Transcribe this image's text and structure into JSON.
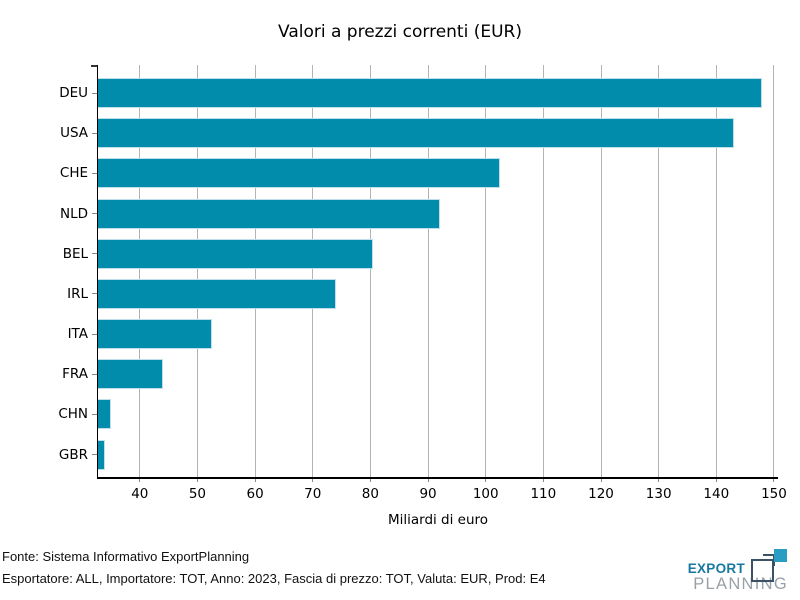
{
  "chart_data": {
    "type": "bar",
    "orientation": "horizontal",
    "title": "Valori a prezzi correnti (EUR)",
    "xlabel": "Miliardi di euro",
    "categories": [
      "DEU",
      "USA",
      "CHE",
      "NLD",
      "BEL",
      "IRL",
      "ITA",
      "FRA",
      "CHN",
      "GBR"
    ],
    "values": [
      148,
      143,
      102.5,
      92,
      80.5,
      74,
      52.5,
      44,
      35,
      34
    ],
    "xlim": [
      32.75,
      150.7
    ],
    "xticks": [
      40,
      50,
      60,
      70,
      80,
      90,
      100,
      110,
      120,
      130,
      140,
      150
    ],
    "grid": "vertical-only",
    "legend": "none",
    "bar_color": "#008caa",
    "bar_edge_color": "#bfdfec",
    "grid_color": "#b4b4b4",
    "axis_color": "#000000"
  },
  "footer": {
    "line1": "Fonte: Sistema Informativo ExportPlanning",
    "line2": "Esportatore: ALL, Importatore: TOT, Anno: 2023, Fascia di prezzo: TOT, Valuta: EUR, Prod: E4"
  },
  "logo": {
    "word1": "EXPORT",
    "word2": "PLANNING",
    "word1_color": "#1779a0",
    "word2_color": "#99a1a8",
    "icon_dark_color": "#3b5266",
    "icon_teal_color": "#2a9dc4"
  }
}
